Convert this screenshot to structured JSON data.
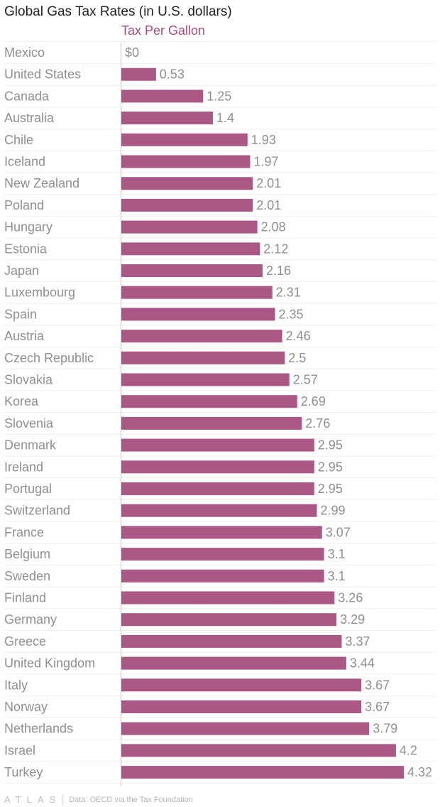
{
  "title": "Global Gas Tax Rates (in U.S. dollars)",
  "footer": {
    "logo": "ATLAS",
    "source": "Data: OECD via the Tax Foundation"
  },
  "colors": {
    "bar": "#ab5887",
    "series_label": "#a14b7e",
    "category_text": "#8f8f8f",
    "value_text": "#8f8f8f",
    "gridline": "#eeeeee",
    "axis": "#c9c9c9"
  },
  "chart_data": {
    "type": "bar",
    "orientation": "horizontal",
    "title": "Global Gas Tax Rates (in U.S. dollars)",
    "series": [
      {
        "name": "Tax Per Gallon",
        "values": [
          0,
          0.53,
          1.25,
          1.4,
          1.93,
          1.97,
          2.01,
          2.01,
          2.08,
          2.12,
          2.16,
          2.31,
          2.35,
          2.46,
          2.5,
          2.57,
          2.69,
          2.76,
          2.95,
          2.95,
          2.95,
          2.99,
          3.07,
          3.1,
          3.1,
          3.26,
          3.29,
          3.37,
          3.44,
          3.67,
          3.67,
          3.79,
          4.2,
          4.32
        ]
      }
    ],
    "categories": [
      "Mexico",
      "United States",
      "Canada",
      "Australia",
      "Chile",
      "Iceland",
      "New Zealand",
      "Poland",
      "Hungary",
      "Estonia",
      "Japan",
      "Luxembourg",
      "Spain",
      "Austria",
      "Czech Republic",
      "Slovakia",
      "Korea",
      "Slovenia",
      "Denmark",
      "Ireland",
      "Portugal",
      "Switzerland",
      "France",
      "Belgium",
      "Sweden",
      "Finland",
      "Germany",
      "Greece",
      "United Kingdom",
      "Italy",
      "Norway",
      "Netherlands",
      "Israel",
      "Turkey"
    ],
    "value_labels": [
      "$0",
      "0.53",
      "1.25",
      "1.4",
      "1.93",
      "1.97",
      "2.01",
      "2.01",
      "2.08",
      "2.12",
      "2.16",
      "2.31",
      "2.35",
      "2.46",
      "2.5",
      "2.57",
      "2.69",
      "2.76",
      "2.95",
      "2.95",
      "2.95",
      "2.99",
      "3.07",
      "3.1",
      "3.1",
      "3.26",
      "3.29",
      "3.37",
      "3.44",
      "3.67",
      "3.67",
      "3.79",
      "4.2",
      "4.32"
    ],
    "xlim": [
      0,
      4.32
    ],
    "xlabel": "",
    "ylabel": "",
    "grid": true,
    "legend": "top"
  }
}
